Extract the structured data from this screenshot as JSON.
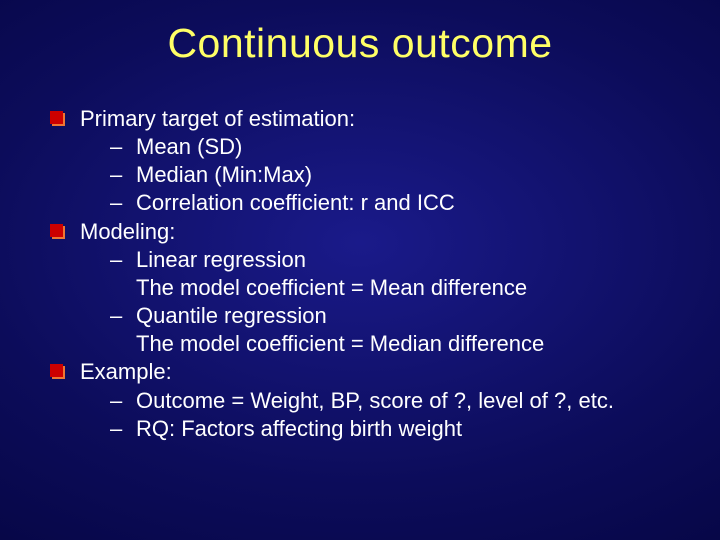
{
  "slide": {
    "title": "Continuous outcome",
    "title_color": "#ffff66",
    "title_fontsize": 41,
    "body_fontsize": 22,
    "body_color": "#ffffff",
    "bullet_front_color": "#cc0000",
    "bullet_shadow_color": "#ee7733",
    "background_colors": [
      "#1a1a8a",
      "#0c0c5a",
      "#000030"
    ],
    "items": [
      {
        "label": "Primary target of estimation:",
        "subs": [
          {
            "label": "Mean (SD)"
          },
          {
            "label": "Median (Min:Max)"
          },
          {
            "label": "Correlation coefficient: r and ICC"
          }
        ]
      },
      {
        "label": "Modeling:",
        "subs": [
          {
            "label": "Linear regression",
            "extra": "The model coefficient = Mean difference"
          },
          {
            "label": "Quantile regression",
            "extra": "The model coefficient = Median difference"
          }
        ]
      },
      {
        "label": "Example:",
        "subs": [
          {
            "label": "Outcome = Weight, BP, score of ?, level of ?, etc."
          },
          {
            "label": "RQ: Factors affecting birth weight"
          }
        ]
      }
    ],
    "dash": "–"
  }
}
